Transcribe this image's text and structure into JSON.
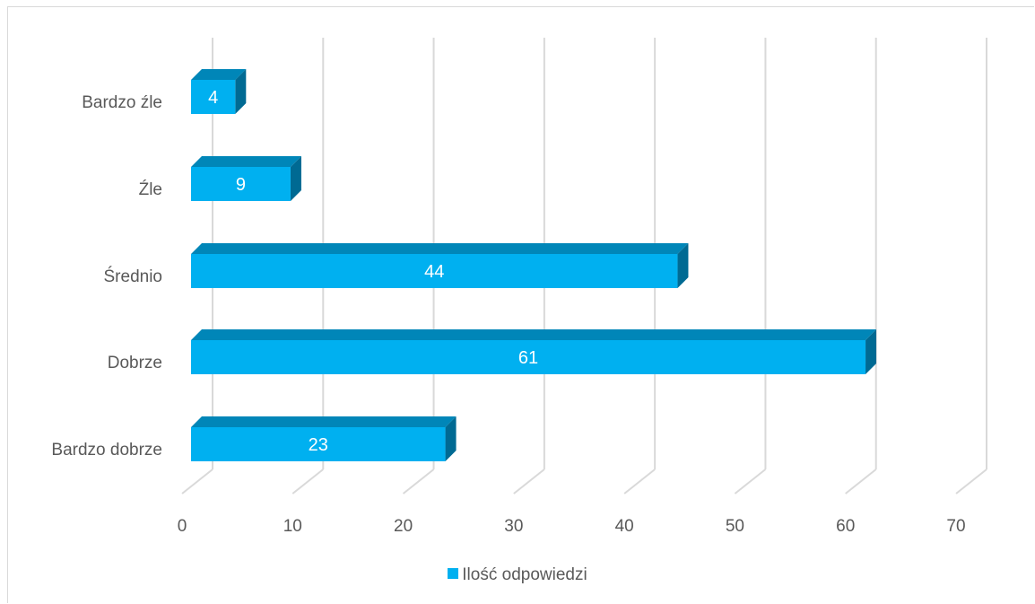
{
  "chart_data": {
    "type": "bar",
    "orientation": "horizontal",
    "categories": [
      "Bardzo źle",
      "Źle",
      "Średnio",
      "Dobrze",
      "Bardzo dobrze"
    ],
    "series": [
      {
        "name": "Ilość odpowiedzi",
        "values": [
          4,
          9,
          44,
          61,
          23
        ],
        "color": "#00b0f0"
      }
    ],
    "xlim": [
      0,
      70
    ],
    "xticks": [
      "0",
      "10",
      "20",
      "30",
      "40",
      "50",
      "60",
      "70"
    ],
    "grid": true,
    "legend_position": "bottom",
    "data_labels": true
  }
}
